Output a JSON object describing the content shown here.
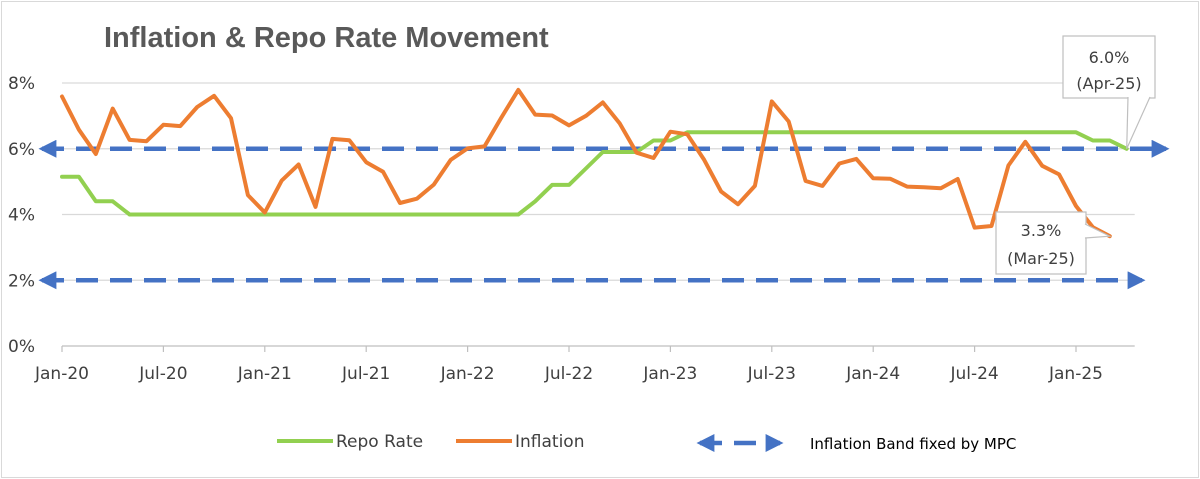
{
  "chart_data": {
    "type": "line",
    "title": "Inflation & Repo Rate Movement",
    "xlabel": "",
    "ylabel": "",
    "ylim": [
      0,
      8
    ],
    "y_ticks": [
      "0%",
      "2%",
      "4%",
      "6%",
      "8%"
    ],
    "x_tick_labels": [
      "Jan-20",
      "Jul-20",
      "Jan-21",
      "Jul-21",
      "Jan-22",
      "Jul-22",
      "Jan-23",
      "Jul-23",
      "Jan-24",
      "Jul-24",
      "Jan-25"
    ],
    "x_months": [
      "Jan-20",
      "Feb-20",
      "Mar-20",
      "Apr-20",
      "May-20",
      "Jun-20",
      "Jul-20",
      "Aug-20",
      "Sep-20",
      "Oct-20",
      "Nov-20",
      "Dec-20",
      "Jan-21",
      "Feb-21",
      "Mar-21",
      "Apr-21",
      "May-21",
      "Jun-21",
      "Jul-21",
      "Aug-21",
      "Sep-21",
      "Oct-21",
      "Nov-21",
      "Dec-21",
      "Jan-22",
      "Feb-22",
      "Mar-22",
      "Apr-22",
      "May-22",
      "Jun-22",
      "Jul-22",
      "Aug-22",
      "Sep-22",
      "Oct-22",
      "Nov-22",
      "Dec-22",
      "Jan-23",
      "Feb-23",
      "Mar-23",
      "Apr-23",
      "May-23",
      "Jun-23",
      "Jul-23",
      "Aug-23",
      "Sep-23",
      "Oct-23",
      "Nov-23",
      "Dec-23",
      "Jan-24",
      "Feb-24",
      "Mar-24",
      "Apr-24",
      "May-24",
      "Jun-24",
      "Jul-24",
      "Aug-24",
      "Sep-24",
      "Oct-24",
      "Nov-24",
      "Dec-24",
      "Jan-25",
      "Feb-25",
      "Mar-25",
      "Apr-25"
    ],
    "series": [
      {
        "name": "Repo Rate",
        "color": "#92D050",
        "values": [
          5.15,
          5.15,
          4.4,
          4.4,
          4.0,
          4.0,
          4.0,
          4.0,
          4.0,
          4.0,
          4.0,
          4.0,
          4.0,
          4.0,
          4.0,
          4.0,
          4.0,
          4.0,
          4.0,
          4.0,
          4.0,
          4.0,
          4.0,
          4.0,
          4.0,
          4.0,
          4.0,
          4.0,
          4.4,
          4.9,
          4.9,
          5.4,
          5.9,
          5.9,
          5.9,
          6.25,
          6.25,
          6.5,
          6.5,
          6.5,
          6.5,
          6.5,
          6.5,
          6.5,
          6.5,
          6.5,
          6.5,
          6.5,
          6.5,
          6.5,
          6.5,
          6.5,
          6.5,
          6.5,
          6.5,
          6.5,
          6.5,
          6.5,
          6.5,
          6.5,
          6.5,
          6.25,
          6.25,
          6.0
        ]
      },
      {
        "name": "Inflation",
        "color": "#ED7D31",
        "values": [
          7.59,
          6.58,
          5.84,
          7.22,
          6.27,
          6.23,
          6.73,
          6.69,
          7.27,
          7.61,
          6.93,
          4.59,
          4.06,
          5.03,
          5.52,
          4.23,
          6.3,
          6.26,
          5.59,
          5.3,
          4.35,
          4.48,
          4.91,
          5.66,
          6.01,
          6.07,
          6.95,
          7.79,
          7.04,
          7.01,
          6.71,
          7.0,
          7.41,
          6.77,
          5.88,
          5.72,
          6.52,
          6.44,
          5.66,
          4.7,
          4.31,
          4.87,
          7.44,
          6.83,
          5.02,
          4.87,
          5.55,
          5.69,
          5.1,
          5.09,
          4.85,
          4.83,
          4.8,
          5.08,
          3.6,
          3.65,
          5.49,
          6.21,
          5.48,
          5.22,
          4.26,
          3.61,
          3.34
        ]
      }
    ],
    "bands": [
      {
        "name": "Inflation Band fixed by MPC",
        "y": 6,
        "color": "#4472C4"
      },
      {
        "name": "Inflation Band fixed by MPC",
        "y": 2,
        "color": "#4472C4"
      }
    ],
    "callouts": [
      {
        "line1": "6.0%",
        "line2": "(Apr-25)",
        "series": "Repo Rate",
        "x": "Apr-25",
        "y": 6.0
      },
      {
        "line1": "3.3%",
        "line2": "(Mar-25)",
        "series": "Inflation",
        "x": "Mar-25",
        "y": 3.34
      }
    ],
    "grid": true,
    "legend": {
      "position": "bottom",
      "items": [
        "Repo Rate",
        "Inflation",
        "Inflation Band fixed by MPC"
      ]
    },
    "colors": {
      "grid": "#D9D9D9",
      "axis": "#BFBFBF",
      "band": "#4472C4"
    }
  }
}
